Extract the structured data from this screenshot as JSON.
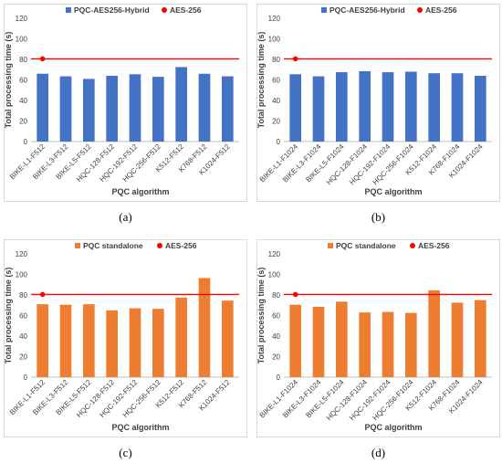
{
  "chart_data": [
    {
      "type": "bar",
      "caption": "(a)",
      "xlabel": "PQC algorithm",
      "ylabel": "Total processing time (s)",
      "ylim": [
        0,
        120
      ],
      "yticks": [
        0,
        20,
        40,
        60,
        80,
        100,
        120
      ],
      "categories": [
        "BIKE-L1-F512",
        "BIKE-L3-F512",
        "BIKE-L5-F512",
        "HQC-128-F512",
        "HQC-192-F512",
        "HQC-256-F512",
        "K512-F512",
        "K768-F512",
        "K1024-F512"
      ],
      "series": [
        {
          "name": "PQC-AES256-Hybrid",
          "type": "bar",
          "color": "#4472C4",
          "values": [
            66,
            63.5,
            61,
            64,
            65.5,
            63,
            72.5,
            66,
            63.5
          ]
        },
        {
          "name": "AES-256",
          "type": "reference",
          "color": "#FF0000",
          "value": 80.5
        }
      ],
      "legend": "top-center"
    },
    {
      "type": "bar",
      "caption": "(b)",
      "xlabel": "PQC algorithm",
      "ylabel": "Total processing time (s)",
      "ylim": [
        0,
        120
      ],
      "yticks": [
        0,
        20,
        40,
        60,
        80,
        100,
        120
      ],
      "categories": [
        "BIKE-L1-F1024",
        "BIKE-L3-F1024",
        "BIKE-L5-F1024",
        "HQC-128-F1024",
        "HQC-192-F1024",
        "HQC-256-F1024",
        "K512-F1024",
        "K768-F1024",
        "K1024-F1024"
      ],
      "series": [
        {
          "name": "PQC-AES256-Hybrid",
          "type": "bar",
          "color": "#4472C4",
          "values": [
            65.5,
            63.5,
            67.5,
            68.5,
            67.5,
            68,
            66.5,
            66.5,
            64
          ]
        },
        {
          "name": "AES-256",
          "type": "reference",
          "color": "#FF0000",
          "value": 80.5
        }
      ],
      "legend": "top-center"
    },
    {
      "type": "bar",
      "caption": "(c)",
      "xlabel": "PQC algorithm",
      "ylabel": "Total processing time (s)",
      "ylim": [
        0,
        120
      ],
      "yticks": [
        0,
        20,
        40,
        60,
        80,
        100,
        120
      ],
      "categories": [
        "BIKE-L1-F512",
        "BIKE-L3-F512",
        "BIKE-L5-F512",
        "HQC-128-F512",
        "HQC-192-F512",
        "HQC-256-F512",
        "K512-F512",
        "K768-F512",
        "K1024-F512"
      ],
      "series": [
        {
          "name": "PQC standalone",
          "type": "bar",
          "color": "#ED7D31",
          "values": [
            71,
            70.5,
            71,
            65,
            67,
            66.5,
            77.5,
            96.5,
            74.5
          ]
        },
        {
          "name": "AES-256",
          "type": "reference",
          "color": "#FF0000",
          "value": 80.5
        }
      ],
      "legend": "top-center"
    },
    {
      "type": "bar",
      "caption": "(d)",
      "xlabel": "PQC algorithm",
      "ylabel": "Total processing time (s)",
      "ylim": [
        0,
        120
      ],
      "yticks": [
        0,
        20,
        40,
        60,
        80,
        100,
        120
      ],
      "categories": [
        "BIKE-L1-F1024",
        "BIKE-L3-F1024",
        "BIKE-L5-F1024",
        "HQC-128-F1024",
        "HQC-192-F1024",
        "HQC-256-F1024",
        "K512-F1024",
        "K768-F1024",
        "K1024-F1024"
      ],
      "series": [
        {
          "name": "PQC standalone",
          "type": "bar",
          "color": "#ED7D31",
          "values": [
            70.5,
            68.5,
            73.5,
            63,
            63.5,
            62.5,
            84.5,
            72.5,
            75
          ]
        },
        {
          "name": "AES-256",
          "type": "reference",
          "color": "#FF0000",
          "value": 80.5
        }
      ],
      "legend": "top-center"
    }
  ]
}
